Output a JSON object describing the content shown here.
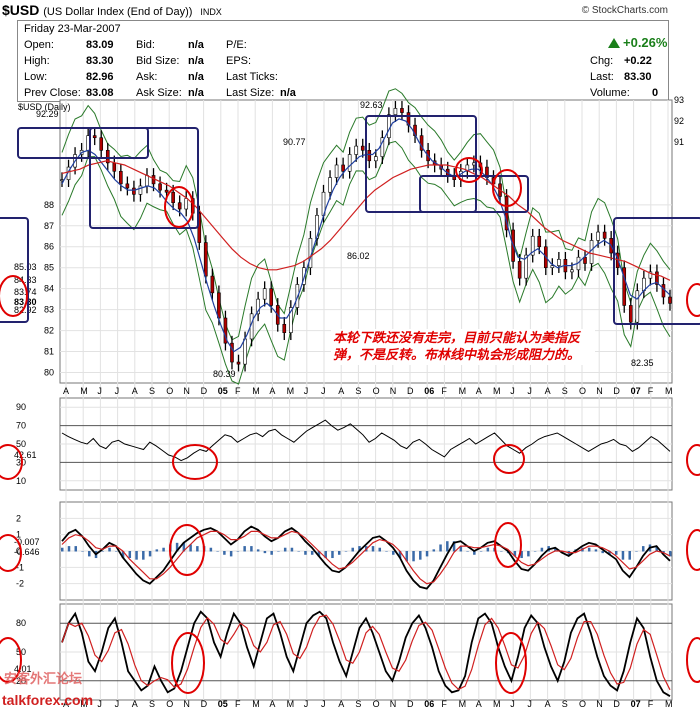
{
  "header": {
    "ticker": "$USD",
    "name": "(US Dollar Index (End of Day))",
    "exchange": "INDX",
    "brand": "© StockCharts.com"
  },
  "quote": {
    "date": "Friday   23-Mar-2007",
    "open_label": "Open:",
    "open": "83.09",
    "high_label": "High:",
    "high": "83.30",
    "low_label": "Low:",
    "low": "82.96",
    "prev_label": "Prev Close:",
    "prev": "83.08",
    "bid_label": "Bid:",
    "bid": "n/a",
    "bidsize_label": "Bid Size:",
    "bidsize": "n/a",
    "ask_label": "Ask:",
    "ask": "n/a",
    "asksize_label": "Ask Size:",
    "asksize": "n/a",
    "pe_label": "P/E:",
    "eps_label": "EPS:",
    "lasttick_label": "Last Ticks:",
    "lastsize_label": "Last Size:",
    "lastsize": "n/a",
    "change_pct": "+0.26%",
    "chg_label": "Chg:",
    "chg": "+0.22",
    "last_label": "Last:",
    "last": "83.30",
    "volume_label": "Volume:",
    "volume": "0",
    "up_color": "#1a7f1a"
  },
  "chart_data": [
    {
      "type": "line",
      "label": "$USD (Daily)",
      "x_labels": [
        "A",
        "M",
        "J",
        "J",
        "A",
        "S",
        "O",
        "N",
        "D",
        "05",
        "F",
        "M",
        "A",
        "M",
        "J",
        "J",
        "A",
        "S",
        "O",
        "N",
        "D",
        "06",
        "F",
        "M",
        "A",
        "M",
        "J",
        "J",
        "A",
        "S",
        "O",
        "N",
        "D",
        "07",
        "F",
        "M"
      ],
      "ylim": [
        79.5,
        93
      ],
      "right_ticks": [
        93,
        92,
        91
      ],
      "left_ticks": [
        88,
        87,
        86,
        85,
        84,
        83,
        82,
        81,
        80
      ],
      "right_scale_labels": [
        "85.03",
        "84.33",
        "83.74",
        "83.30",
        "82.92"
      ],
      "annotations": [
        "92.29",
        "90.77",
        "92.63",
        "80.39",
        "86.02",
        "82.35"
      ],
      "price": [
        89.2,
        89.8,
        90.4,
        90.6,
        91.3,
        91.2,
        90.6,
        90.0,
        89.6,
        89.0,
        88.8,
        88.5,
        88.9,
        89.4,
        89.0,
        88.7,
        88.6,
        88.1,
        87.8,
        88.3,
        87.6,
        86.2,
        84.6,
        83.8,
        82.6,
        81.4,
        80.5,
        80.4,
        81.6,
        82.8,
        83.5,
        84.0,
        83.2,
        82.3,
        81.9,
        83.1,
        84.2,
        85.0,
        86.4,
        87.5,
        88.6,
        89.3,
        89.9,
        89.6,
        90.4,
        90.8,
        90.6,
        90.1,
        90.3,
        91.2,
        92.3,
        92.6,
        92.4,
        91.8,
        91.3,
        90.6,
        90.1,
        89.9,
        89.7,
        89.4,
        89.2,
        89.6,
        89.9,
        90.0,
        89.8,
        89.3,
        89.0,
        88.4,
        86.8,
        85.3,
        84.5,
        85.6,
        86.5,
        86.0,
        85.0,
        85.1,
        85.4,
        84.8,
        84.9,
        85.5,
        85.2,
        86.3,
        86.7,
        86.4,
        85.7,
        85.0,
        83.2,
        82.4,
        83.9,
        84.5,
        84.8,
        84.2,
        83.6,
        83.3
      ],
      "ma_red": [
        89.5,
        89.6,
        89.7,
        89.9,
        90.0,
        90.1,
        90.0,
        89.9,
        89.7,
        89.5,
        89.3,
        89.1,
        88.9,
        88.6,
        88.3,
        87.9,
        87.4,
        86.9,
        86.4,
        85.9,
        85.5,
        85.2,
        85.0,
        84.9,
        84.9,
        85.0,
        85.1,
        85.3,
        85.6,
        85.9,
        86.3,
        86.8,
        87.3,
        87.8,
        88.3,
        88.7,
        89.0,
        89.3,
        89.5,
        89.7,
        89.8,
        89.9,
        89.9,
        89.9,
        89.8,
        89.7,
        89.5,
        89.3,
        89.0,
        88.7,
        88.4,
        88.0,
        87.7,
        87.3,
        86.9,
        86.6,
        86.3,
        86.1,
        85.9,
        85.7,
        85.6,
        85.5,
        85.4,
        85.3,
        85.1,
        84.9,
        84.7,
        84.6,
        84.4
      ],
      "ma_blue": [
        89.0,
        89.6,
        90.1,
        90.5,
        90.6,
        90.4,
        90.0,
        89.6,
        89.2,
        88.9,
        88.7,
        88.7,
        88.8,
        88.9,
        88.8,
        88.5,
        88.1,
        87.8,
        87.6,
        87.2,
        86.4,
        85.3,
        84.2,
        83.2,
        82.3,
        81.5,
        81.0,
        81.2,
        81.8,
        82.6,
        83.1,
        83.3,
        83.0,
        82.6,
        82.6,
        83.1,
        83.9,
        84.9,
        85.9,
        86.9,
        87.9,
        88.7,
        89.3,
        89.7,
        90.0,
        90.3,
        90.4,
        90.4,
        90.7,
        91.3,
        91.9,
        92.1,
        92.0,
        91.6,
        91.0,
        90.5,
        90.1,
        89.9,
        89.6,
        89.4,
        89.4,
        89.6,
        89.7,
        89.7,
        89.4,
        89.0,
        88.4,
        87.5,
        86.3,
        85.5,
        85.4,
        85.7,
        85.9,
        85.6,
        85.2,
        85.0,
        85.1,
        85.1,
        85.2,
        85.5,
        85.8,
        86.1,
        86.3,
        86.1,
        85.5,
        84.6,
        83.7,
        83.5,
        83.9,
        84.2,
        84.3,
        84.0,
        83.7
      ]
    },
    {
      "type": "line",
      "label": "RSI(14)",
      "ylim": [
        0,
        100
      ],
      "ticks": [
        90,
        70,
        50,
        30,
        10
      ],
      "current": "42.61",
      "values": [
        62,
        58,
        55,
        52,
        50,
        56,
        48,
        45,
        52,
        54,
        50,
        48,
        46,
        44,
        52,
        48,
        43,
        38,
        36,
        32,
        35,
        40,
        44,
        42,
        48,
        54,
        60,
        58,
        52,
        56,
        60,
        62,
        58,
        64,
        66,
        60,
        56,
        52,
        58,
        64,
        68,
        72,
        76,
        70,
        65,
        68,
        72,
        66,
        60,
        52,
        56,
        62,
        58,
        54,
        48,
        45,
        52,
        55,
        50,
        44,
        40,
        36,
        44,
        48,
        52,
        56,
        50,
        54,
        58,
        62,
        55,
        48,
        44,
        40,
        46,
        50,
        55,
        58,
        60,
        62,
        58,
        54,
        50,
        46,
        42,
        46,
        50,
        52,
        55,
        50,
        48,
        42,
        46,
        52,
        58,
        54,
        48,
        42
      ]
    },
    {
      "type": "line",
      "label": "MACD",
      "ylim": [
        -3,
        3
      ],
      "ticks": [
        2,
        1,
        0,
        -1,
        -2
      ],
      "current": [
        "-0.007",
        "-0.646"
      ],
      "macd": [
        0.6,
        1.1,
        1.3,
        0.9,
        0.3,
        -0.2,
        0.1,
        0.5,
        0.3,
        -0.4,
        -0.9,
        -1.4,
        -1.8,
        -2.0,
        -1.6,
        -1.2,
        -0.6,
        0.0,
        0.5,
        0.8,
        1.1,
        1.3,
        1.4,
        1.2,
        0.8,
        0.4,
        0.7,
        1.2,
        1.5,
        1.3,
        0.9,
        0.6,
        0.8,
        1.2,
        1.4,
        1.1,
        0.6,
        0.2,
        -0.3,
        -0.8,
        -1.2,
        -1.3,
        -1.0,
        -0.5,
        0.0,
        0.4,
        0.8,
        0.9,
        0.6,
        0.2,
        -0.4,
        -1.2,
        -1.8,
        -2.2,
        -2.3,
        -1.8,
        -1.0,
        -0.2,
        0.5,
        0.6,
        0.3,
        0.0,
        0.2,
        0.5,
        0.6,
        0.3,
        0.0,
        -0.6,
        -1.1,
        -1.2,
        -0.8,
        -0.3,
        0.1,
        0.2,
        -0.1,
        -0.3,
        0.0,
        0.3,
        0.5,
        0.4,
        0.1,
        -0.2,
        -0.5,
        -1.2,
        -1.6,
        -1.0,
        -0.3,
        0.2,
        0.3,
        -0.2,
        -0.6
      ],
      "signal": [
        0.4,
        0.8,
        1.0,
        0.9,
        0.6,
        0.2,
        0.1,
        0.3,
        0.3,
        0.0,
        -0.5,
        -0.9,
        -1.3,
        -1.7,
        -1.7,
        -1.4,
        -1.0,
        -0.5,
        0.0,
        0.4,
        0.8,
        1.0,
        1.2,
        1.2,
        1.0,
        0.7,
        0.7,
        0.9,
        1.2,
        1.2,
        1.0,
        0.8,
        0.8,
        1.0,
        1.2,
        1.1,
        0.8,
        0.4,
        0.0,
        -0.4,
        -0.8,
        -1.1,
        -1.0,
        -0.7,
        -0.3,
        0.1,
        0.5,
        0.7,
        0.6,
        0.4,
        0.0,
        -0.6,
        -1.2,
        -1.7,
        -2.0,
        -1.9,
        -1.4,
        -0.8,
        -0.1,
        0.3,
        0.3,
        0.2,
        0.2,
        0.3,
        0.4,
        0.3,
        0.1,
        -0.3,
        -0.7,
        -0.9,
        -0.8,
        -0.5,
        -0.2,
        0.0,
        0.0,
        -0.1,
        -0.1,
        0.1,
        0.3,
        0.3,
        0.2,
        0.0,
        -0.3,
        -0.7,
        -1.1,
        -1.0,
        -0.6,
        -0.2,
        0.0,
        -0.1,
        -0.3
      ]
    },
    {
      "type": "line",
      "label": "Stochastic",
      "ylim": [
        0,
        100
      ],
      "ticks": [
        80,
        50,
        20
      ],
      "current": "4.01",
      "k": [
        60,
        80,
        90,
        70,
        40,
        30,
        50,
        75,
        85,
        60,
        30,
        20,
        10,
        15,
        35,
        20,
        8,
        12,
        30,
        55,
        80,
        92,
        85,
        60,
        45,
        70,
        90,
        80,
        55,
        35,
        60,
        85,
        90,
        70,
        45,
        30,
        55,
        80,
        88,
        92,
        85,
        60,
        40,
        25,
        50,
        75,
        85,
        70,
        50,
        30,
        20,
        40,
        65,
        80,
        88,
        75,
        55,
        30,
        15,
        8,
        10,
        25,
        60,
        85,
        90,
        80,
        55,
        35,
        20,
        45,
        75,
        88,
        80,
        55,
        35,
        20,
        40,
        70,
        85,
        90,
        70,
        45,
        25,
        15,
        10,
        30,
        60,
        85,
        75,
        45,
        20,
        8,
        4
      ]
    }
  ]
}
